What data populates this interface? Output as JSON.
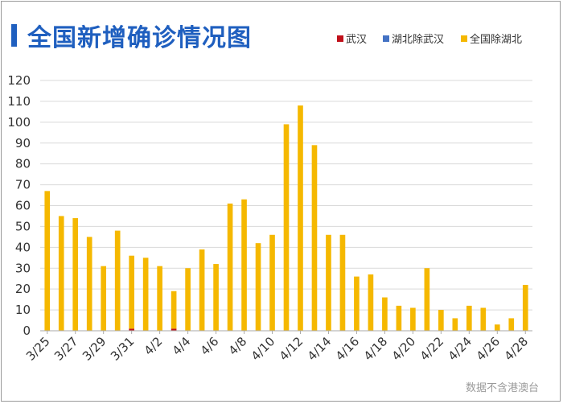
{
  "page": {
    "title": "全国新增确诊情况图",
    "watermark": "数据不含港澳台"
  },
  "colors": {
    "title": "#1f5fbf",
    "wuhan": "#c0101a",
    "hubei_ex_wuhan": "#4472c4",
    "national_ex_hubei": "#f5b800",
    "grid": "#d9d9d9",
    "axis": "#aaaaaa"
  },
  "chart_data": {
    "type": "bar",
    "stacked": true,
    "categories": [
      "3/25",
      "3/26",
      "3/27",
      "3/28",
      "3/29",
      "3/30",
      "3/31",
      "4/1",
      "4/2",
      "4/3",
      "4/4",
      "4/5",
      "4/6",
      "4/7",
      "4/8",
      "4/9",
      "4/10",
      "4/11",
      "4/12",
      "4/13",
      "4/14",
      "4/15",
      "4/16",
      "4/17",
      "4/18",
      "4/19",
      "4/20",
      "4/21",
      "4/22",
      "4/23",
      "4/24",
      "4/25",
      "4/26",
      "4/27",
      "4/28"
    ],
    "tick_labels": [
      "3/25",
      "3/27",
      "3/29",
      "3/31",
      "4/2",
      "4/4",
      "4/6",
      "4/8",
      "4/10",
      "4/12",
      "4/14",
      "4/16",
      "4/18",
      "4/20",
      "4/22",
      "4/24",
      "4/26",
      "4/28"
    ],
    "series": [
      {
        "name": "武汉",
        "color_key": "wuhan",
        "values": [
          0,
          0,
          0,
          0,
          0,
          0,
          1,
          0,
          0,
          1,
          0,
          0,
          0,
          0,
          0,
          0,
          0,
          0,
          0,
          0,
          0,
          0,
          0,
          0,
          0,
          0,
          0,
          0,
          0,
          0,
          0,
          0,
          0,
          0,
          0
        ]
      },
      {
        "name": "湖北除武汉",
        "color_key": "hubei_ex_wuhan",
        "values": [
          0,
          0,
          0,
          0,
          0,
          0,
          0,
          0,
          0,
          0,
          0,
          0,
          0,
          0,
          0,
          0,
          0,
          0,
          0,
          0,
          0,
          0,
          0,
          0,
          0,
          0,
          0,
          0,
          0,
          0,
          0,
          0,
          0,
          0,
          0
        ]
      },
      {
        "name": "全国除湖北",
        "color_key": "national_ex_hubei",
        "values": [
          67,
          55,
          54,
          45,
          31,
          48,
          35,
          35,
          31,
          18,
          30,
          39,
          32,
          61,
          63,
          42,
          46,
          99,
          108,
          89,
          46,
          46,
          26,
          27,
          16,
          12,
          11,
          30,
          10,
          6,
          12,
          11,
          3,
          6,
          22
        ]
      }
    ],
    "ylim": [
      0,
      120
    ],
    "yticks": [
      0,
      10,
      20,
      30,
      40,
      50,
      60,
      70,
      80,
      90,
      100,
      110,
      120
    ],
    "grid": true,
    "legend_position": "top-right"
  }
}
